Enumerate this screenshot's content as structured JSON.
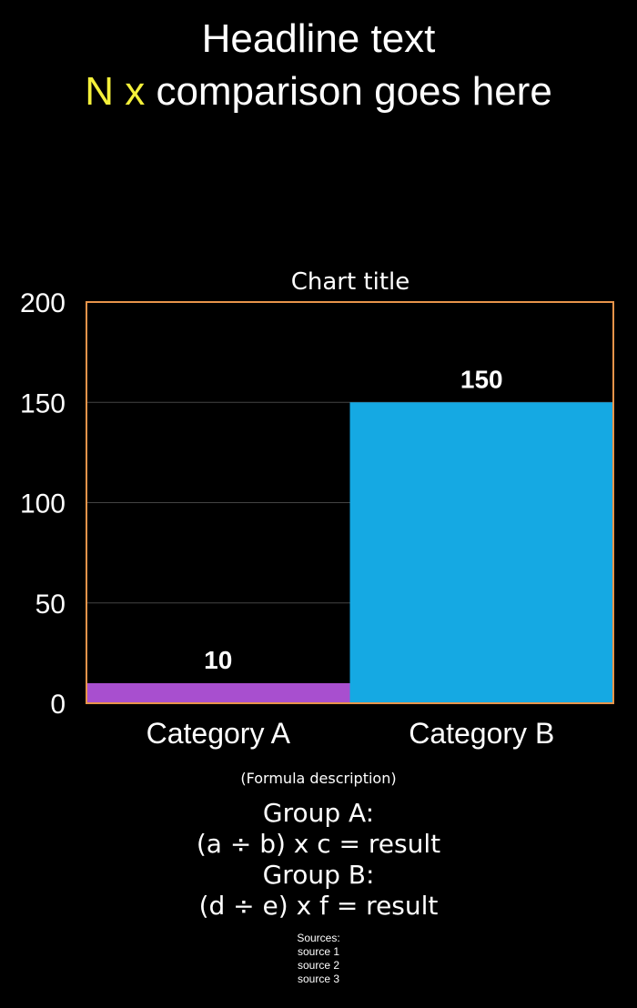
{
  "headline": {
    "before": "Headline text",
    "highlight": "N x",
    "after": "comparison goes here"
  },
  "chart_data": {
    "type": "bar",
    "title": "Chart title",
    "categories": [
      "Category A",
      "Category B"
    ],
    "values": [
      10,
      150
    ],
    "data_labels": [
      "10",
      "150"
    ],
    "colors": [
      "#a84fcf",
      "#15a9e3"
    ],
    "frame_color": "#e8944a",
    "ylim": [
      0,
      200
    ],
    "yticks": [
      "0",
      "50",
      "100",
      "150",
      "200"
    ],
    "grid": true
  },
  "formula": {
    "rule": "(Formula description)",
    "lines": [
      "Group A:",
      "(a ÷ b) x c = result",
      "Group B:",
      "(d ÷ e) x f = result"
    ]
  },
  "sources": {
    "heading": "Sources:",
    "items": [
      "source 1",
      "source 2",
      "source 3"
    ]
  }
}
